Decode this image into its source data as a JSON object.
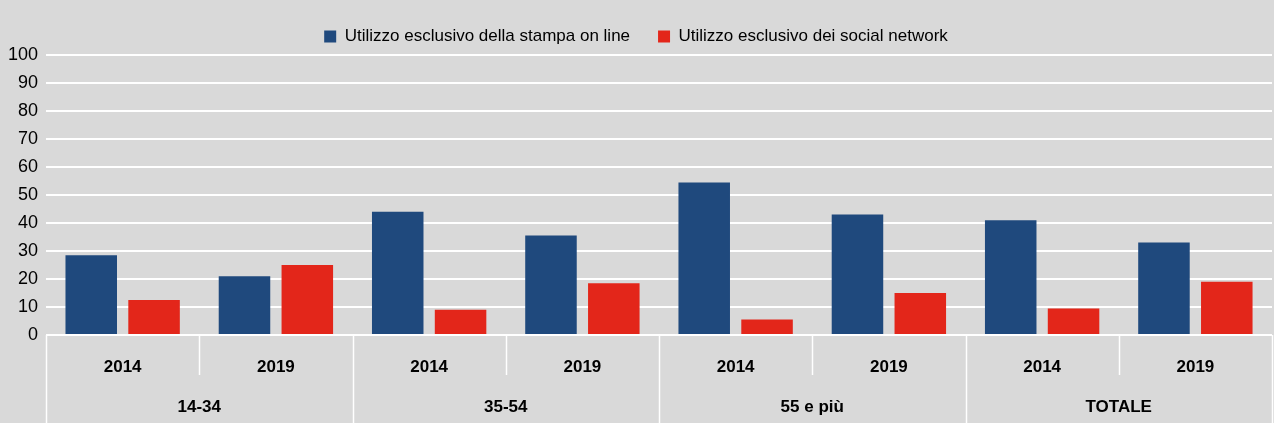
{
  "chart_data": {
    "type": "bar",
    "categories": [
      "2014",
      "2019",
      "2014",
      "2019",
      "2014",
      "2019",
      "2014",
      "2019"
    ],
    "series": [
      {
        "name": "Utilizzo esclusivo della stampa on line",
        "color": "#1f497d",
        "values": [
          28.5,
          21,
          44,
          35.5,
          54.5,
          43,
          41,
          33
        ]
      },
      {
        "name": "Utilizzo esclusivo dei social network",
        "color": "#e3261a",
        "values": [
          12.5,
          25,
          9,
          18.5,
          5.5,
          15,
          9.5,
          19
        ]
      }
    ],
    "annotations": [
      "14-34",
      "35-54",
      "55 e più",
      "TOTALE"
    ],
    "ylim": [
      0,
      100
    ],
    "yticks": [
      0,
      10,
      20,
      30,
      40,
      50,
      60,
      70,
      80,
      90,
      100
    ],
    "grid": true,
    "legend": "top"
  }
}
